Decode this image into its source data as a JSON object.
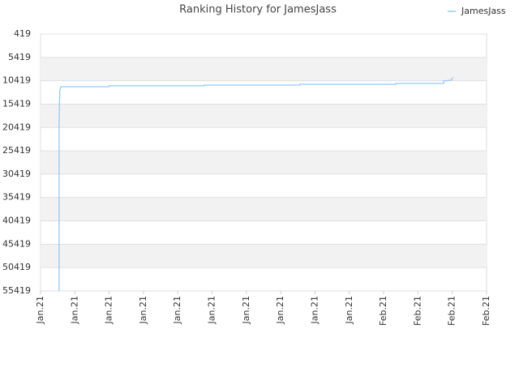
{
  "chart_data": {
    "type": "line",
    "title": "Ranking History for JamesJass",
    "x": [
      0.54,
      0.54,
      0.54,
      0.56,
      0.59,
      1.99,
      1.99,
      4.77,
      4.77,
      7.56,
      7.56,
      10.35,
      10.35,
      11.75,
      11.75,
      11.98,
      12.0,
      12.02
    ],
    "series": [
      {
        "name": "JamesJass",
        "color": "#90caf9",
        "values": [
          55419,
          36500,
          20000,
          12500,
          11700,
          11700,
          11500,
          11500,
          11350,
          11350,
          11180,
          11180,
          11000,
          11000,
          10480,
          10300,
          9900,
          9700
        ]
      }
    ],
    "xlim": [
      0,
      13
    ],
    "xticks": [
      {
        "value": 0,
        "label": "Jan.21"
      },
      {
        "value": 1,
        "label": "Jan.21"
      },
      {
        "value": 2,
        "label": "Jan.21"
      },
      {
        "value": 3,
        "label": "Jan.21"
      },
      {
        "value": 4,
        "label": "Jan.21"
      },
      {
        "value": 5,
        "label": "Jan.21"
      },
      {
        "value": 6,
        "label": "Jan.21"
      },
      {
        "value": 7,
        "label": "Jan.21"
      },
      {
        "value": 8,
        "label": "Jan.21"
      },
      {
        "value": 9,
        "label": "Jan.21"
      },
      {
        "value": 10,
        "label": "Feb.21"
      },
      {
        "value": 11,
        "label": "Feb.21"
      },
      {
        "value": 12,
        "label": "Feb.21"
      },
      {
        "value": 13,
        "label": "Feb.21"
      }
    ],
    "ylim": [
      419,
      55419
    ],
    "y_inverted": true,
    "yticks": [
      419,
      5419,
      10419,
      15419,
      20419,
      25419,
      30419,
      35419,
      40419,
      45419,
      50419,
      55419
    ],
    "grid": true,
    "legend": "top-right"
  }
}
